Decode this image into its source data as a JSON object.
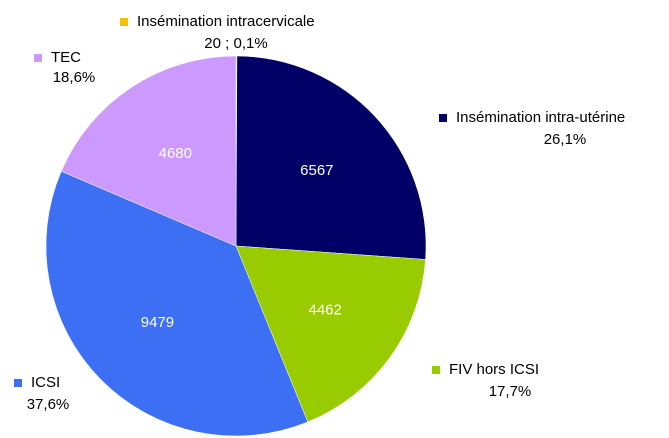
{
  "chart_data": {
    "type": "pie",
    "categories": [
      "Insémination intracervicale",
      "Insémination intra-utérine",
      "FIV hors ICSI",
      "ICSI",
      "TEC"
    ],
    "values": [
      20,
      6567,
      4462,
      9479,
      4680
    ],
    "percentages": [
      0.1,
      26.1,
      17.7,
      37.6,
      18.6
    ],
    "percentage_labels": [
      "0,1%",
      "26,1%",
      "17,7%",
      "37,6%",
      "18,6%"
    ],
    "label_separator": " ; ",
    "colors": [
      "#f2c200",
      "#000066",
      "#99cc00",
      "#3d6ff5",
      "#cc99ff"
    ]
  }
}
